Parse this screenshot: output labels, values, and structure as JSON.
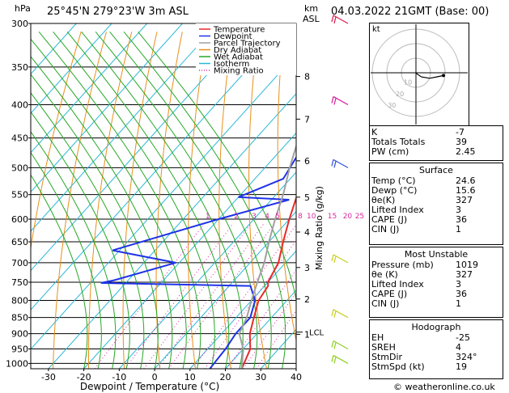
{
  "header": {
    "hpa_unit": "hPa",
    "location": "25°45'N 279°23'W 3m ASL",
    "km_unit": "km",
    "asl": "ASL",
    "datetime": "04.03.2022 21GMT (Base: 00)"
  },
  "legend": [
    "Temperature",
    "Dewpoint",
    "Parcel Trajectory",
    "Dry Adiabat",
    "Wet Adiabat",
    "Isotherm",
    "Mixing Ratio"
  ],
  "colors": {
    "temperature": "#e8292b",
    "dewpoint": "#1f33e8",
    "parcel": "#a0a0a0",
    "dry_adiabat": "#e8901a",
    "wet_adiabat": "#26a826",
    "isotherm": "#2ab8d8",
    "mixing_ratio": "#d82aa0"
  },
  "chart_data": {
    "type": "line",
    "xlabel": "Dewpoint / Temperature (°C)",
    "ylabel_right": "Mixing Ratio (g/kg)",
    "xlim": [
      -35,
      40
    ],
    "x_ticks": [
      -30,
      -20,
      -10,
      0,
      10,
      20,
      30,
      40
    ],
    "pressure_ticks": [
      300,
      350,
      400,
      450,
      500,
      550,
      600,
      650,
      700,
      750,
      800,
      850,
      900,
      950,
      1000
    ],
    "km_ticks": [
      {
        "label": "8",
        "p": 362
      },
      {
        "label": "7",
        "p": 421
      },
      {
        "label": "6",
        "p": 488
      },
      {
        "label": "5",
        "p": 555
      },
      {
        "label": "4",
        "p": 628
      },
      {
        "label": "3",
        "p": 712
      },
      {
        "label": "2",
        "p": 796
      },
      {
        "label": "1",
        "p": 902
      }
    ],
    "lcl": {
      "label": "LCL",
      "p": 895
    },
    "mixing_ratio_labels": [
      "1",
      "2",
      "3",
      "4",
      "5",
      "8",
      "10",
      "15",
      "20",
      "25"
    ],
    "mixing_ratio_values": [
      1,
      2,
      3,
      4,
      5,
      8,
      10,
      15,
      20,
      25
    ],
    "series": [
      {
        "name": "Temperature",
        "points": [
          [
            24.6,
            1019
          ],
          [
            22,
            950
          ],
          [
            18,
            900
          ],
          [
            15,
            850
          ],
          [
            12,
            800
          ],
          [
            11,
            760
          ],
          [
            10,
            750
          ],
          [
            8,
            700
          ],
          [
            4,
            650
          ],
          [
            0,
            600
          ],
          [
            -4,
            550
          ],
          [
            -7,
            500
          ],
          [
            -12,
            450
          ],
          [
            -19,
            400
          ],
          [
            -27,
            350
          ],
          [
            -35,
            300
          ]
        ]
      },
      {
        "name": "Dewpoint",
        "points": [
          [
            15.6,
            1019
          ],
          [
            15,
            950
          ],
          [
            14,
            900
          ],
          [
            14,
            850
          ],
          [
            11,
            800
          ],
          [
            6,
            760
          ],
          [
            -37,
            752
          ],
          [
            -34,
            745
          ],
          [
            -21,
            700
          ],
          [
            -42,
            670
          ],
          [
            -20,
            600
          ],
          [
            -5,
            560
          ],
          [
            -20,
            555
          ],
          [
            -12,
            520
          ],
          [
            -17,
            420
          ],
          [
            -19,
            400
          ],
          [
            -21,
            380
          ],
          [
            -15,
            350
          ],
          [
            -42,
            322
          ],
          [
            -45,
            300
          ]
        ]
      },
      {
        "name": "Parcel Trajectory",
        "points": [
          [
            24.6,
            1019
          ],
          [
            20,
            950
          ],
          [
            15,
            900
          ],
          [
            13,
            850
          ],
          [
            10,
            800
          ],
          [
            7,
            750
          ],
          [
            4,
            700
          ],
          [
            0,
            650
          ],
          [
            -4,
            600
          ],
          [
            -8,
            550
          ],
          [
            -13,
            500
          ],
          [
            -18,
            450
          ],
          [
            -23,
            400
          ],
          [
            -29,
            350
          ],
          [
            -36,
            300
          ]
        ]
      }
    ]
  },
  "wind_barbs_p": [
    300,
    400,
    500,
    700,
    850,
    950,
    1000
  ],
  "hodograph": {
    "label": "kt",
    "ring_labels": [
      "10",
      "20",
      "30"
    ],
    "points": [
      [
        0,
        0
      ],
      [
        1,
        -1
      ],
      [
        4,
        -3
      ],
      [
        10,
        -4
      ],
      [
        15,
        -3
      ],
      [
        20,
        -2
      ]
    ]
  },
  "indices": {
    "top": [
      {
        "label": "K",
        "value": "-7"
      },
      {
        "label": "Totals Totals",
        "value": "39"
      },
      {
        "label": "PW (cm)",
        "value": "2.45"
      }
    ],
    "surface": {
      "title": "Surface",
      "rows": [
        {
          "label": "Temp (°C)",
          "value": "24.6"
        },
        {
          "label": "Dewp (°C)",
          "value": "15.6"
        },
        {
          "label": "θe(K)",
          "value": "327"
        },
        {
          "label": "Lifted Index",
          "value": "3"
        },
        {
          "label": "CAPE (J)",
          "value": "36"
        },
        {
          "label": "CIN (J)",
          "value": "1"
        }
      ]
    },
    "most_unstable": {
      "title": "Most Unstable",
      "rows": [
        {
          "label": "Pressure (mb)",
          "value": "1019"
        },
        {
          "label": "θe (K)",
          "value": "327"
        },
        {
          "label": "Lifted Index",
          "value": "3"
        },
        {
          "label": "CAPE (J)",
          "value": "36"
        },
        {
          "label": "CIN (J)",
          "value": "1"
        }
      ]
    },
    "hodograph": {
      "title": "Hodograph",
      "rows": [
        {
          "label": "EH",
          "value": "-25"
        },
        {
          "label": "SREH",
          "value": "4"
        },
        {
          "label": "StmDir",
          "value": "324°"
        },
        {
          "label": "StmSpd (kt)",
          "value": "19"
        }
      ]
    }
  },
  "footer": "© weatheronline.co.uk"
}
